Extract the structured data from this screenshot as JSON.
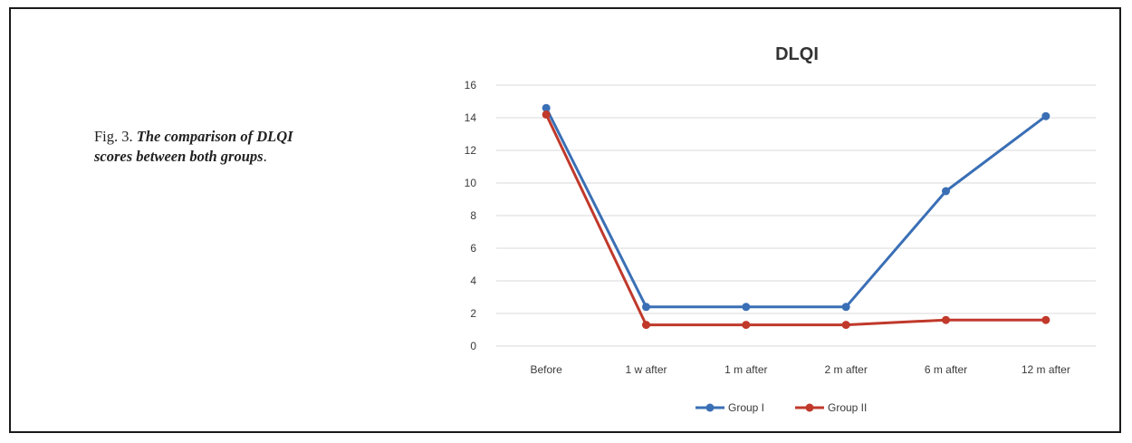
{
  "figure": {
    "caption_prefix": "Fig. 3.",
    "caption_text": "The comparison of DLQI scores between both groups",
    "caption_suffix": "."
  },
  "chart_data": {
    "type": "line",
    "title": "DLQI",
    "xlabel": "",
    "ylabel": "",
    "categories": [
      "Before",
      "1 w after",
      "1 m after",
      "2 m after",
      "6 m after",
      "12 m after"
    ],
    "ylim": [
      0,
      16
    ],
    "yticks": [
      0,
      2,
      4,
      6,
      8,
      10,
      12,
      14,
      16
    ],
    "grid": true,
    "legend_position": "bottom",
    "series": [
      {
        "name": "Group I",
        "color": "#3a6fb5",
        "values": [
          14.6,
          2.4,
          2.4,
          2.4,
          9.5,
          14.1
        ]
      },
      {
        "name": "Group II",
        "color": "#c0392b",
        "values": [
          14.2,
          1.3,
          1.3,
          1.3,
          1.6,
          1.6
        ]
      }
    ]
  }
}
